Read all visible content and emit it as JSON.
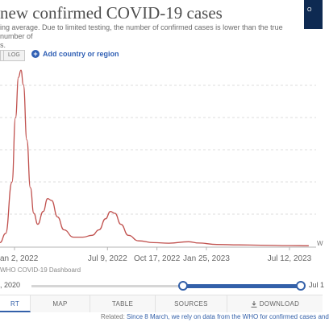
{
  "header": {
    "title": "new confirmed COVID-19 cases",
    "subtitle_line1": "ing average. Due to limited testing, the number of confirmed cases is lower than the true number of",
    "subtitle_line2": "s.",
    "logo_text": "O"
  },
  "controls": {
    "log_label": "LOG",
    "add_country_label": "Add country or region",
    "add_icon": "plus-circle-icon"
  },
  "chart_data": {
    "type": "line",
    "x_tick_labels": [
      "an 2, 2022",
      "Jul 9, 2022",
      "Oct 17, 2022",
      "Jan 25, 2023",
      "Jul 12, 2023"
    ],
    "x_tick_dates": [
      "2022-01-02",
      "2022-07-09",
      "2022-10-17",
      "2023-01-25",
      "2023-07-12"
    ],
    "right_end_label": "W",
    "line_color": "#c0504d",
    "grid": "horizontal dotted",
    "relative_points": [
      [
        "2021-11-20",
        0.02
      ],
      [
        "2021-12-15",
        0.07
      ],
      [
        "2021-12-28",
        0.35
      ],
      [
        "2022-01-04",
        0.7
      ],
      [
        "2022-01-10",
        0.92
      ],
      [
        "2022-01-15",
        0.96
      ],
      [
        "2022-01-20",
        0.88
      ],
      [
        "2022-01-27",
        0.58
      ],
      [
        "2022-02-03",
        0.32
      ],
      [
        "2022-02-10",
        0.18
      ],
      [
        "2022-02-18",
        0.12
      ],
      [
        "2022-03-01",
        0.19
      ],
      [
        "2022-03-10",
        0.26
      ],
      [
        "2022-03-18",
        0.25
      ],
      [
        "2022-03-30",
        0.16
      ],
      [
        "2022-04-12",
        0.09
      ],
      [
        "2022-05-01",
        0.05
      ],
      [
        "2022-05-20",
        0.05
      ],
      [
        "2022-06-08",
        0.06
      ],
      [
        "2022-06-22",
        0.09
      ],
      [
        "2022-07-05",
        0.15
      ],
      [
        "2022-07-15",
        0.19
      ],
      [
        "2022-07-24",
        0.18
      ],
      [
        "2022-08-05",
        0.12
      ],
      [
        "2022-08-20",
        0.06
      ],
      [
        "2022-09-10",
        0.03
      ],
      [
        "2022-10-10",
        0.02
      ],
      [
        "2022-11-10",
        0.017
      ],
      [
        "2022-12-20",
        0.025
      ],
      [
        "2023-01-10",
        0.018
      ],
      [
        "2023-02-15",
        0.01
      ],
      [
        "2023-04-01",
        0.008
      ],
      [
        "2023-05-15",
        0.006
      ],
      [
        "2023-07-12",
        0.004
      ],
      [
        "2023-08-20",
        0.003
      ]
    ]
  },
  "source": {
    "text": "WHO COVID-19 Dashboard"
  },
  "timeline": {
    "start_date": ", 2020",
    "end_date": "Jul 1"
  },
  "tabs": [
    {
      "label": "RT",
      "active": true
    },
    {
      "label": "MAP",
      "active": false
    },
    {
      "label": "TABLE",
      "active": false
    },
    {
      "label": "SOURCES",
      "active": false
    },
    {
      "label": "DOWNLOAD",
      "active": false,
      "icon": "download-icon"
    }
  ],
  "related": {
    "prefix": "Related: ",
    "link_text": "Since 8 March, we rely on data from the WHO for confirmed cases and"
  }
}
